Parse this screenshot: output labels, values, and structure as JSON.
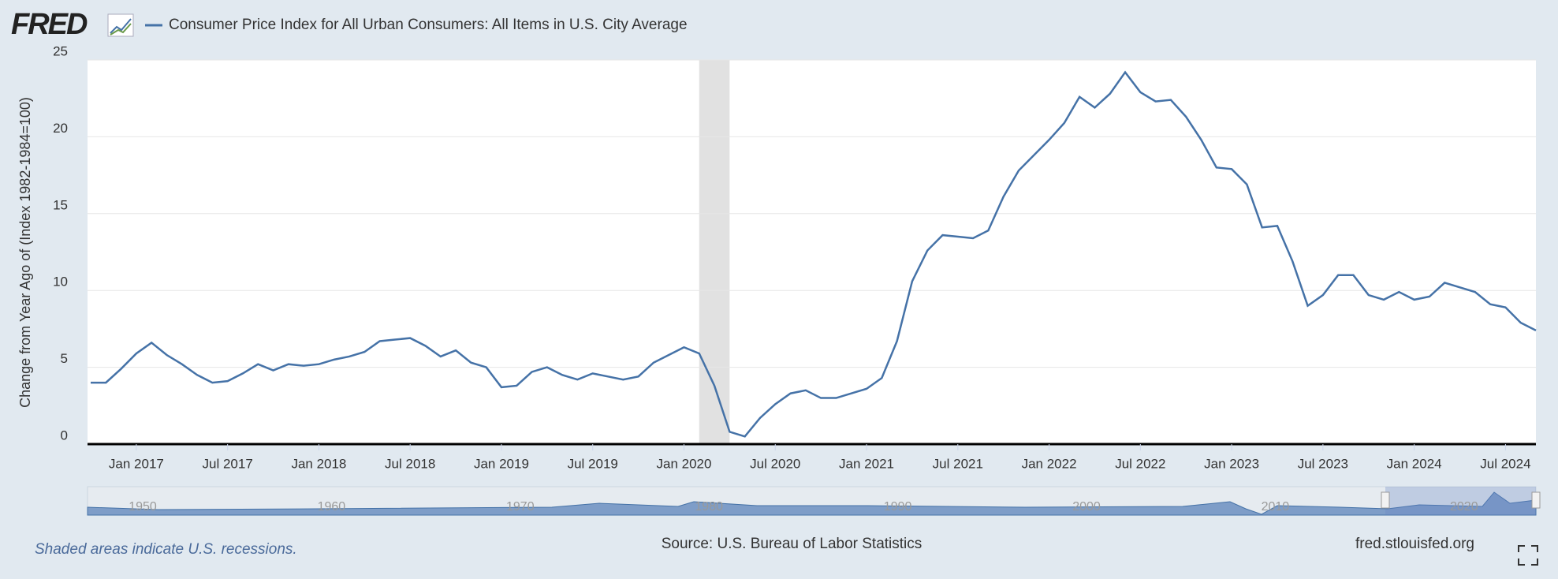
{
  "chart_data": {
    "type": "line",
    "logo": "FRED",
    "ylabel": "Change from Year Ago of (Index 1982-1984=100)",
    "series": [
      {
        "name": "Consumer Price Index for All Urban Consumers: All Items in U.S. City Average",
        "color": "#4572a7",
        "values": [
          4.0,
          4.0,
          4.9,
          5.9,
          6.6,
          5.8,
          5.2,
          4.5,
          4.0,
          4.1,
          4.6,
          5.2,
          4.8,
          5.2,
          5.1,
          5.2,
          5.5,
          5.7,
          6.0,
          6.7,
          6.8,
          6.9,
          6.4,
          5.7,
          6.1,
          5.3,
          5.0,
          3.7,
          3.8,
          4.7,
          5.0,
          4.5,
          4.2,
          4.6,
          4.4,
          4.2,
          4.4,
          5.3,
          5.8,
          6.3,
          5.9,
          3.8,
          0.8,
          0.5,
          1.7,
          2.6,
          3.3,
          3.5,
          3.0,
          3.0,
          3.3,
          3.6,
          4.3,
          6.7,
          10.6,
          12.6,
          13.6,
          13.5,
          13.4,
          13.9,
          16.1,
          17.8,
          18.8,
          19.8,
          20.9,
          22.6,
          21.9,
          22.8,
          24.2,
          22.9,
          22.3,
          22.4,
          21.3,
          19.8,
          18.0,
          17.9,
          16.9,
          14.1,
          14.2,
          11.9,
          9.0,
          9.7,
          11.0,
          11.0,
          9.7,
          9.4,
          9.9,
          9.4,
          9.6,
          10.5,
          10.2,
          9.9,
          9.1,
          8.9,
          7.9,
          7.4
        ]
      }
    ],
    "x": [
      "2016-10",
      "2016-11",
      "2016-12",
      "2017-01",
      "2017-02",
      "2017-03",
      "2017-04",
      "2017-05",
      "2017-06",
      "2017-07",
      "2017-08",
      "2017-09",
      "2017-10",
      "2017-11",
      "2017-12",
      "2018-01",
      "2018-02",
      "2018-03",
      "2018-04",
      "2018-05",
      "2018-06",
      "2018-07",
      "2018-08",
      "2018-09",
      "2018-10",
      "2018-11",
      "2018-12",
      "2019-01",
      "2019-02",
      "2019-03",
      "2019-04",
      "2019-05",
      "2019-06",
      "2019-07",
      "2019-08",
      "2019-09",
      "2019-10",
      "2019-11",
      "2019-12",
      "2020-01",
      "2020-02",
      "2020-03",
      "2020-04",
      "2020-05",
      "2020-06",
      "2020-07",
      "2020-08",
      "2020-09",
      "2020-10",
      "2020-11",
      "2020-12",
      "2021-01",
      "2021-02",
      "2021-03",
      "2021-04",
      "2021-05",
      "2021-06",
      "2021-07",
      "2021-08",
      "2021-09",
      "2021-10",
      "2021-11",
      "2021-12",
      "2022-01",
      "2022-02",
      "2022-03",
      "2022-04",
      "2022-05",
      "2022-06",
      "2022-07",
      "2022-08",
      "2022-09",
      "2022-10",
      "2022-11",
      "2022-12",
      "2023-01",
      "2023-02",
      "2023-03",
      "2023-04",
      "2023-05",
      "2023-06",
      "2023-07",
      "2023-08",
      "2023-09",
      "2023-10",
      "2023-11",
      "2023-12",
      "2024-01",
      "2024-02",
      "2024-03",
      "2024-04",
      "2024-05",
      "2024-06",
      "2024-07",
      "2024-08",
      "2024-09"
    ],
    "xlim": [
      "2016-10",
      "2024-09"
    ],
    "xticks": [
      {
        "value": "2017-01",
        "label": "Jan 2017"
      },
      {
        "value": "2017-07",
        "label": "Jul 2017"
      },
      {
        "value": "2018-01",
        "label": "Jan 2018"
      },
      {
        "value": "2018-07",
        "label": "Jul 2018"
      },
      {
        "value": "2019-01",
        "label": "Jan 2019"
      },
      {
        "value": "2019-07",
        "label": "Jul 2019"
      },
      {
        "value": "2020-01",
        "label": "Jan 2020"
      },
      {
        "value": "2020-07",
        "label": "Jul 2020"
      },
      {
        "value": "2021-01",
        "label": "Jan 2021"
      },
      {
        "value": "2021-07",
        "label": "Jul 2021"
      },
      {
        "value": "2022-01",
        "label": "Jan 2022"
      },
      {
        "value": "2022-07",
        "label": "Jul 2022"
      },
      {
        "value": "2023-01",
        "label": "Jan 2023"
      },
      {
        "value": "2023-07",
        "label": "Jul 2023"
      },
      {
        "value": "2024-01",
        "label": "Jan 2024"
      },
      {
        "value": "2024-07",
        "label": "Jul 2024"
      }
    ],
    "ylim": [
      0,
      25
    ],
    "yticks": [
      0,
      5,
      10,
      15,
      20,
      25
    ],
    "grid": true,
    "recessions": [
      {
        "start": "2020-02",
        "end": "2020-04"
      }
    ],
    "navigator_labels": [
      "1950",
      "1960",
      "1970",
      "1980",
      "1990",
      "2000",
      "2010",
      "2020"
    ],
    "note": "Shaded areas indicate U.S. recessions.",
    "source": "Source: U.S. Bureau of Labor Statistics",
    "site": "fred.stlouisfed.org"
  }
}
